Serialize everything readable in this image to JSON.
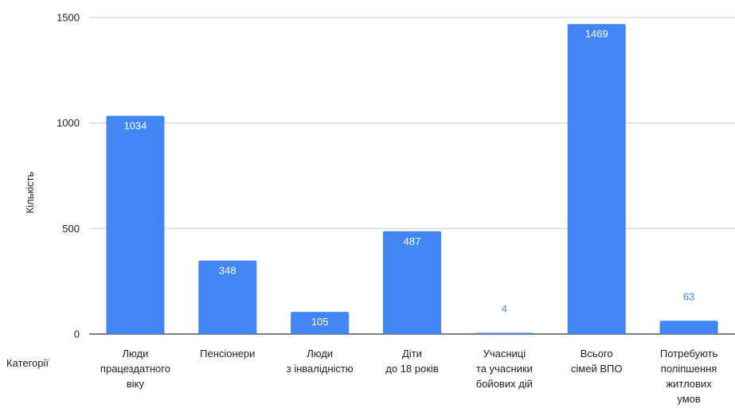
{
  "chart_data": {
    "type": "bar",
    "title": "",
    "xlabel": "Категорії",
    "ylabel": "Кількість",
    "ylim": [
      0,
      1500
    ],
    "yticks": [
      "0",
      "500",
      "1000",
      "1500"
    ],
    "grid": true,
    "legend": "none",
    "bar_color": "#4285f4",
    "label_color_inside": "#ffffff",
    "label_color_outside": "#4285f4",
    "categories": [
      [
        "Люди",
        "працездатного",
        "віку"
      ],
      [
        "Пенсіонери"
      ],
      [
        "Люди",
        "з інвалідністю"
      ],
      [
        "Діти",
        "до 18 років"
      ],
      [
        "Учасниці",
        "та учасники",
        "бойових дій"
      ],
      [
        "Всього",
        "сімей ВПО"
      ],
      [
        "Потребують",
        "поліпшення",
        "житлових",
        "умов"
      ]
    ],
    "values": [
      1034,
      348,
      105,
      487,
      4,
      1469,
      63
    ],
    "data_labels": [
      "1034",
      "348",
      "105",
      "487",
      "4",
      "1469",
      "63"
    ]
  }
}
